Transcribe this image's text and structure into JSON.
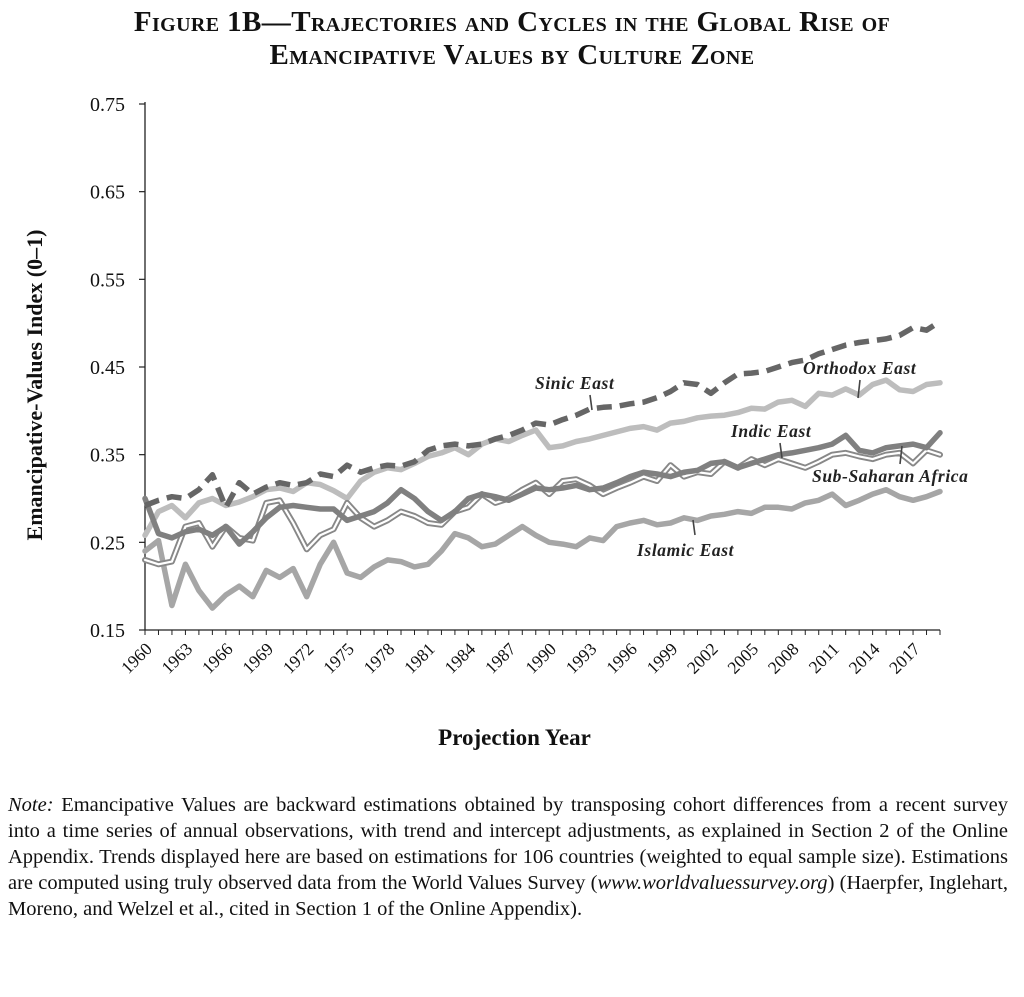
{
  "title": {
    "line1": "Figure 1B—Trajectories and Cycles in the Global Rise of",
    "line2": "Emancipative Values by Culture Zone"
  },
  "chart_data": {
    "type": "line",
    "title": "Figure 1B—Trajectories and Cycles in the Global Rise of Emancipative Values by Culture Zone",
    "xlabel": "Projection Year",
    "ylabel": "Emancipative-Values Index (0–1)",
    "xlim": [
      1960,
      2019
    ],
    "ylim": [
      0.15,
      0.75
    ],
    "yticks": [
      "0.15",
      "0.25",
      "0.35",
      "0.45",
      "0.55",
      "0.65",
      "0.75"
    ],
    "xticks": [
      "1960",
      "1963",
      "1966",
      "1969",
      "1972",
      "1975",
      "1978",
      "1981",
      "1984",
      "1987",
      "1990",
      "1993",
      "1996",
      "1999",
      "2002",
      "2005",
      "2008",
      "2011",
      "2014",
      "2017"
    ],
    "x": [
      1960,
      1961,
      1962,
      1963,
      1964,
      1965,
      1966,
      1967,
      1968,
      1969,
      1970,
      1971,
      1972,
      1973,
      1974,
      1975,
      1976,
      1977,
      1978,
      1979,
      1980,
      1981,
      1982,
      1983,
      1984,
      1985,
      1986,
      1987,
      1988,
      1989,
      1990,
      1991,
      1992,
      1993,
      1994,
      1995,
      1996,
      1997,
      1998,
      1999,
      2000,
      2001,
      2002,
      2003,
      2004,
      2005,
      2006,
      2007,
      2008,
      2009,
      2010,
      2011,
      2012,
      2013,
      2014,
      2015,
      2016,
      2017,
      2018,
      2019
    ],
    "series": [
      {
        "name": "Sinic East",
        "color": "#666666",
        "style": "dashed",
        "values": [
          0.292,
          0.298,
          0.302,
          0.3,
          0.31,
          0.327,
          0.29,
          0.318,
          0.305,
          0.313,
          0.318,
          0.315,
          0.318,
          0.328,
          0.325,
          0.338,
          0.33,
          0.335,
          0.338,
          0.337,
          0.342,
          0.355,
          0.36,
          0.362,
          0.36,
          0.362,
          0.368,
          0.372,
          0.378,
          0.386,
          0.384,
          0.39,
          0.395,
          0.402,
          0.404,
          0.405,
          0.408,
          0.41,
          0.415,
          0.422,
          0.432,
          0.43,
          0.42,
          0.432,
          0.442,
          0.443,
          0.445,
          0.45,
          0.455,
          0.458,
          0.465,
          0.47,
          0.475,
          0.478,
          0.48,
          0.482,
          0.486,
          0.495,
          0.492,
          0.502
        ]
      },
      {
        "name": "Orthodox East",
        "color": "#bdbdbd",
        "style": "solid",
        "values": [
          0.258,
          0.285,
          0.292,
          0.278,
          0.295,
          0.3,
          0.292,
          0.296,
          0.302,
          0.31,
          0.312,
          0.308,
          0.318,
          0.316,
          0.309,
          0.3,
          0.32,
          0.33,
          0.335,
          0.333,
          0.34,
          0.348,
          0.352,
          0.358,
          0.35,
          0.362,
          0.368,
          0.365,
          0.372,
          0.378,
          0.358,
          0.36,
          0.365,
          0.368,
          0.372,
          0.376,
          0.38,
          0.382,
          0.378,
          0.386,
          0.388,
          0.392,
          0.394,
          0.395,
          0.398,
          0.403,
          0.402,
          0.41,
          0.412,
          0.405,
          0.42,
          0.418,
          0.425,
          0.418,
          0.43,
          0.435,
          0.424,
          0.422,
          0.43,
          0.432
        ]
      },
      {
        "name": "Indic East",
        "color": "#808080",
        "style": "solid",
        "values": [
          0.3,
          0.26,
          0.255,
          0.262,
          0.265,
          0.258,
          0.268,
          0.248,
          0.262,
          0.278,
          0.29,
          0.292,
          0.29,
          0.288,
          0.288,
          0.275,
          0.28,
          0.285,
          0.295,
          0.31,
          0.3,
          0.285,
          0.275,
          0.285,
          0.3,
          0.305,
          0.302,
          0.298,
          0.305,
          0.312,
          0.31,
          0.312,
          0.315,
          0.31,
          0.312,
          0.318,
          0.325,
          0.33,
          0.328,
          0.325,
          0.33,
          0.332,
          0.34,
          0.342,
          0.335,
          0.34,
          0.345,
          0.35,
          0.352,
          0.355,
          0.358,
          0.362,
          0.372,
          0.355,
          0.352,
          0.358,
          0.36,
          0.362,
          0.358,
          0.375
        ]
      },
      {
        "name": "Sub-Saharan Africa",
        "color": "#888888",
        "style": "double",
        "values": [
          0.23,
          0.225,
          0.228,
          0.268,
          0.272,
          0.245,
          0.268,
          0.255,
          0.252,
          0.295,
          0.298,
          0.272,
          0.242,
          0.258,
          0.265,
          0.295,
          0.278,
          0.268,
          0.275,
          0.285,
          0.28,
          0.272,
          0.27,
          0.285,
          0.29,
          0.305,
          0.295,
          0.3,
          0.31,
          0.318,
          0.305,
          0.32,
          0.322,
          0.315,
          0.305,
          0.312,
          0.318,
          0.325,
          0.32,
          0.338,
          0.325,
          0.33,
          0.328,
          0.342,
          0.335,
          0.345,
          0.338,
          0.345,
          0.34,
          0.335,
          0.342,
          0.35,
          0.352,
          0.348,
          0.345,
          0.35,
          0.352,
          0.34,
          0.355,
          0.35
        ]
      },
      {
        "name": "Islamic East",
        "color": "#a6a6a6",
        "style": "solid",
        "values": [
          0.24,
          0.252,
          0.178,
          0.225,
          0.195,
          0.175,
          0.19,
          0.2,
          0.188,
          0.218,
          0.21,
          0.22,
          0.188,
          0.225,
          0.25,
          0.215,
          0.21,
          0.222,
          0.23,
          0.228,
          0.222,
          0.225,
          0.24,
          0.26,
          0.255,
          0.245,
          0.248,
          0.258,
          0.268,
          0.258,
          0.25,
          0.248,
          0.245,
          0.255,
          0.252,
          0.268,
          0.272,
          0.275,
          0.27,
          0.272,
          0.278,
          0.275,
          0.28,
          0.282,
          0.285,
          0.283,
          0.29,
          0.29,
          0.288,
          0.295,
          0.298,
          0.305,
          0.292,
          0.298,
          0.305,
          0.31,
          0.302,
          0.298,
          0.302,
          0.308
        ]
      }
    ],
    "annotations": [
      "Sinic East",
      "Orthodox East",
      "Indic East",
      "Sub-Saharan Africa",
      "Islamic East"
    ],
    "grid": false,
    "legend": "inline labels"
  },
  "note": {
    "label": "Note:",
    "text1": " Emancipative Values are backward estimations obtained by transposing cohort differences from a recent survey into a time series of annual observations, with trend and intercept adjustments, as explained in Section 2 of the Online Appendix. Trends displayed here are based on estimations for 106 countries (weighted to equal sample size). Estimations are computed using truly observed data from the World Values Survey (",
    "link": "www.worldvaluessurvey.org",
    "text2": ") (Haerpfer, Inglehart, Moreno, and Welzel et al., cited in Section 1 of the Online Appendix)."
  }
}
